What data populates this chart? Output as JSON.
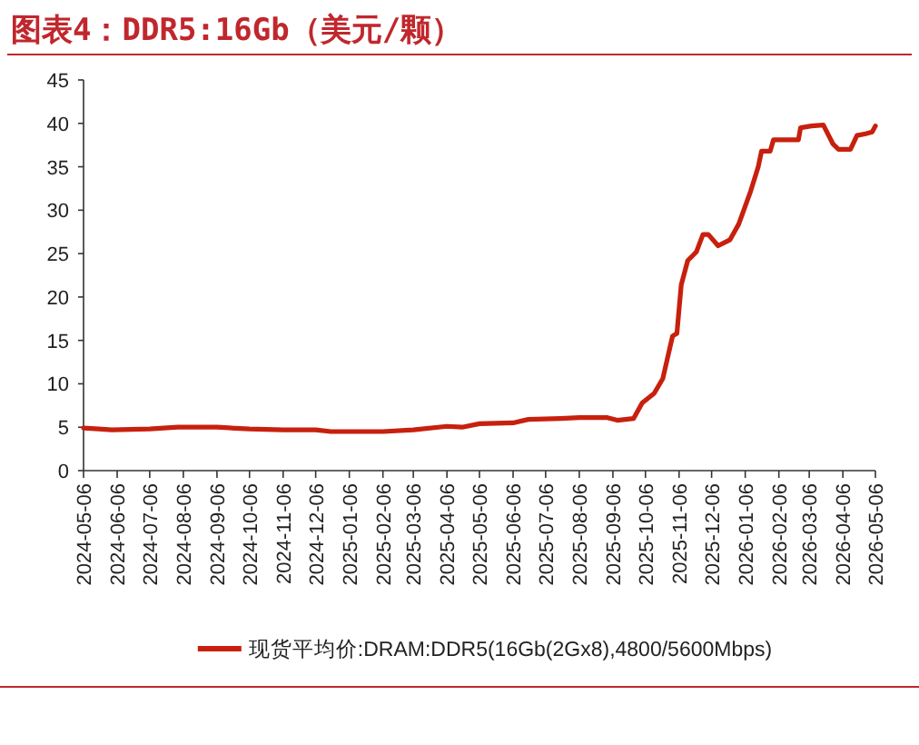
{
  "chart_data": {
    "type": "line",
    "title": "图表4：DDR5:16Gb（美元/颗）",
    "x": [
      "2024-05-06",
      "2024-05-20",
      "2024-06-01",
      "2024-07-06",
      "2024-08-01",
      "2024-09-06",
      "2024-10-06",
      "2024-11-06",
      "2024-12-06",
      "2024-12-20",
      "2025-02-06",
      "2025-03-06",
      "2025-04-06",
      "2025-04-20",
      "2025-05-06",
      "2025-06-06",
      "2025-06-20",
      "2025-07-20",
      "2025-08-06",
      "2025-09-01",
      "2025-09-10",
      "2025-09-25",
      "2025-10-03",
      "2025-10-14",
      "2025-10-22",
      "2025-10-31",
      "2025-11-04",
      "2025-11-08",
      "2025-11-14",
      "2025-11-22",
      "2025-11-28",
      "2025-12-03",
      "2025-12-12",
      "2025-12-23",
      "2025-12-31",
      "2026-01-11",
      "2026-01-18",
      "2026-01-21",
      "2026-01-29",
      "2026-02-01",
      "2026-02-24",
      "2026-02-26",
      "2026-03-08",
      "2026-03-19",
      "2026-03-28",
      "2026-04-02",
      "2026-04-13",
      "2026-04-19",
      "2026-04-27",
      "2026-05-03",
      "2026-05-06"
    ],
    "series": [
      {
        "name": "现货平均价:DRAM:DDR5(16Gb(2Gx8),4800/5600Mbps)",
        "color": "#c8200e",
        "values": [
          4.9,
          4.8,
          4.7,
          4.8,
          5.0,
          5.0,
          4.8,
          4.7,
          4.7,
          4.5,
          4.5,
          4.7,
          5.1,
          5.0,
          5.4,
          5.5,
          5.9,
          6.0,
          6.1,
          6.1,
          5.8,
          6.0,
          7.8,
          8.9,
          10.6,
          15.5,
          15.8,
          21.4,
          24.2,
          25.2,
          27.2,
          27.2,
          25.9,
          26.6,
          28.4,
          32.2,
          35.0,
          36.8,
          36.8,
          38.1,
          38.1,
          39.5,
          39.7,
          39.8,
          37.6,
          37.0,
          37.0,
          38.6,
          38.8,
          39.0,
          39.7
        ]
      }
    ],
    "xlim": [
      "2024-05-06",
      "2026-05-06"
    ],
    "ylim": [
      0,
      45
    ],
    "yticks": [
      0,
      5,
      10,
      15,
      20,
      25,
      30,
      35,
      40,
      45
    ],
    "xticks": [
      "2024-05-06",
      "2024-06-06",
      "2024-07-06",
      "2024-08-06",
      "2024-09-06",
      "2024-10-06",
      "2024-11-06",
      "2024-12-06",
      "2025-01-06",
      "2025-02-06",
      "2025-03-06",
      "2025-04-06",
      "2025-05-06",
      "2025-06-06",
      "2025-07-06",
      "2025-08-06",
      "2025-09-06",
      "2025-10-06",
      "2025-11-06",
      "2025-12-06",
      "2026-01-06",
      "2026-02-06",
      "2026-03-06",
      "2026-04-06",
      "2026-05-06"
    ],
    "legend": "bottom"
  }
}
